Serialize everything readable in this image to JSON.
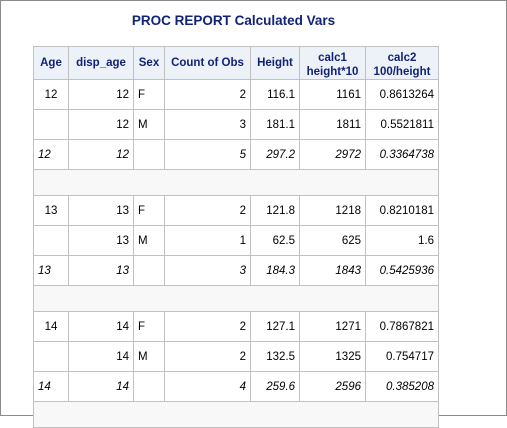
{
  "title": "PROC REPORT Calculated Vars",
  "headers": {
    "age": "Age",
    "disp_age": "disp_age",
    "sex": "Sex",
    "count": "Count of Obs",
    "height": "Height",
    "calc1_l1": "calc1",
    "calc1_l2": "height*10",
    "calc2_l1": "calc2",
    "calc2_l2": "100/height"
  },
  "groups": [
    {
      "rows": [
        {
          "age": "12",
          "disp_age": "12",
          "sex": "F",
          "count": "2",
          "height": "116.1",
          "calc1": "1161",
          "calc2": "0.8613264"
        },
        {
          "age": "",
          "disp_age": "12",
          "sex": "M",
          "count": "3",
          "height": "181.1",
          "calc1": "1811",
          "calc2": "0.5521811"
        }
      ],
      "summary": {
        "age": "12",
        "disp_age": "12",
        "sex": "",
        "count": "5",
        "height": "297.2",
        "calc1": "2972",
        "calc2": "0.3364738"
      }
    },
    {
      "rows": [
        {
          "age": "13",
          "disp_age": "13",
          "sex": "F",
          "count": "2",
          "height": "121.8",
          "calc1": "1218",
          "calc2": "0.8210181"
        },
        {
          "age": "",
          "disp_age": "13",
          "sex": "M",
          "count": "1",
          "height": "62.5",
          "calc1": "625",
          "calc2": "1.6"
        }
      ],
      "summary": {
        "age": "13",
        "disp_age": "13",
        "sex": "",
        "count": "3",
        "height": "184.3",
        "calc1": "1843",
        "calc2": "0.5425936"
      }
    },
    {
      "rows": [
        {
          "age": "14",
          "disp_age": "14",
          "sex": "F",
          "count": "2",
          "height": "127.1",
          "calc1": "1271",
          "calc2": "0.7867821"
        },
        {
          "age": "",
          "disp_age": "14",
          "sex": "M",
          "count": "2",
          "height": "132.5",
          "calc1": "1325",
          "calc2": "0.754717"
        }
      ],
      "summary": {
        "age": "14",
        "disp_age": "14",
        "sex": "",
        "count": "4",
        "height": "259.6",
        "calc1": "2596",
        "calc2": "0.385208"
      }
    }
  ]
}
